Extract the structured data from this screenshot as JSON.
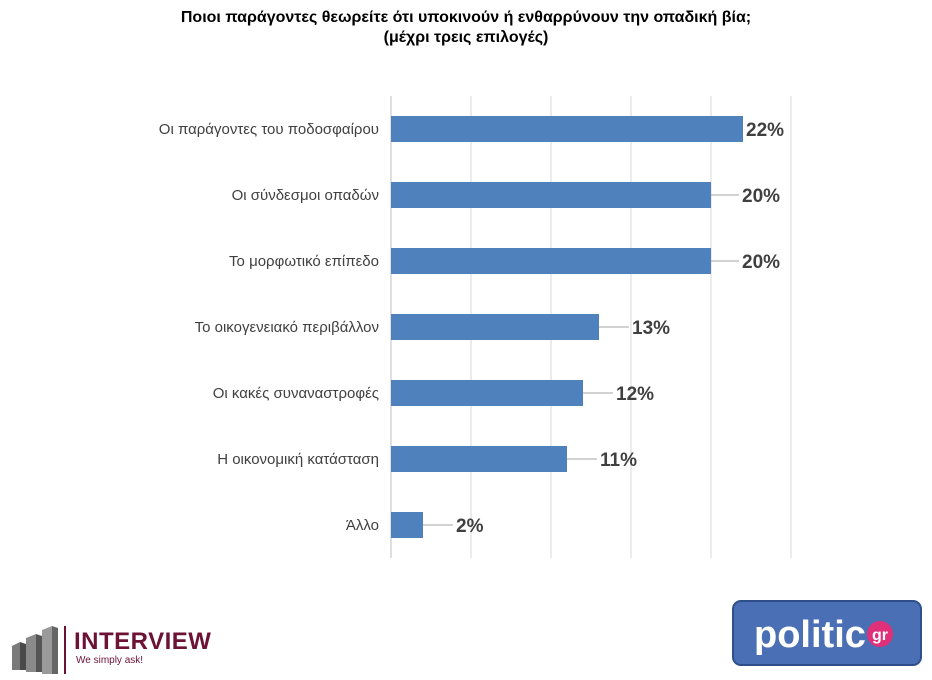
{
  "title_line1": "Ποιοι παράγοντες θεωρείτε ότι υποκινούν ή ενθαρρύνουν την οπαδική βία;",
  "title_line2": "(μέχρι τρεις επιλογές)",
  "chart_data": {
    "type": "bar",
    "orientation": "horizontal",
    "title": "Ποιοι παράγοντες θεωρείτε ότι υποκινούν ή ενθαρρύνουν την οπαδική βία;",
    "subtitle": "(μέχρι τρεις επιλογές)",
    "categories": [
      "Οι παράγοντες του ποδοσφαίρου",
      "Οι σύνδεσμοι οπαδών",
      "Το μορφωτικό επίπεδο",
      "Το οικογενειακό περιβάλλον",
      "Οι κακές συναναστροφές",
      "Η οικονομική κατάσταση",
      "Άλλο"
    ],
    "values": [
      22,
      20,
      20,
      13,
      12,
      11,
      2
    ],
    "data_labels": [
      "22%",
      "20%",
      "20%",
      "13%",
      "12%",
      "11%",
      "2%"
    ],
    "unit": "%",
    "xlim": [
      0,
      25
    ],
    "grid": true,
    "bar_color": "#4f81bd",
    "legend": "none"
  },
  "logos": {
    "interview_name": "INTERVIEW",
    "interview_tagline": "We simply ask!",
    "interview_color": "#6b1235",
    "politic_text": "politic",
    "politic_suffix": "gr",
    "politic_bg": "#4a6fb4",
    "politic_accent": "#e0307a"
  }
}
